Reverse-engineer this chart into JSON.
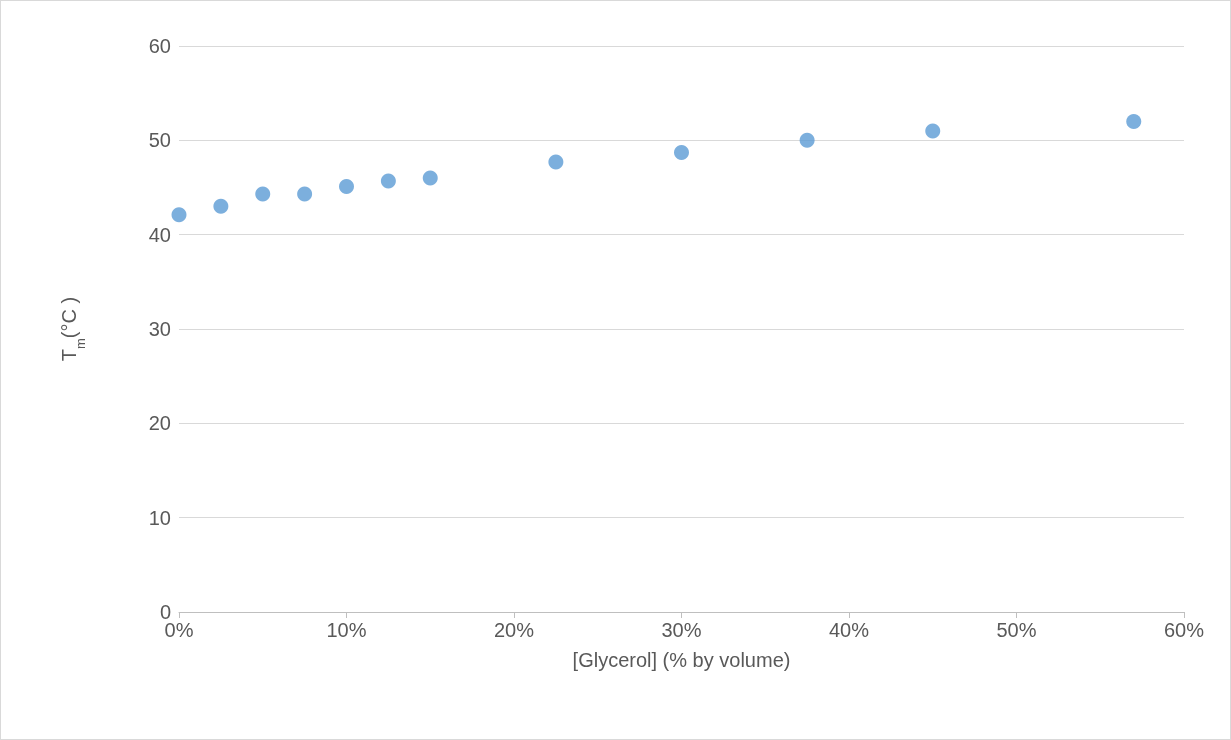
{
  "chart_data": {
    "type": "scatter",
    "xlabel": "[Glycerol] (% by volume)",
    "ylabel": "T$_{m}$(°C )",
    "x": [
      0,
      2.5,
      5,
      7.5,
      10,
      12.5,
      15,
      22.5,
      30,
      37.5,
      45,
      57
    ],
    "series": [
      {
        "color": "#5b9bd5",
        "values": [
          42.1,
          43.0,
          44.3,
          44.3,
          45.1,
          45.7,
          46.0,
          47.7,
          48.7,
          50.0,
          51.0,
          52.0
        ]
      }
    ],
    "xlim": [
      0,
      60
    ],
    "xticks": [
      {
        "value": 0,
        "label": "0%"
      },
      {
        "value": 10,
        "label": "10%"
      },
      {
        "value": 20,
        "label": "20%"
      },
      {
        "value": 30,
        "label": "30%"
      },
      {
        "value": 40,
        "label": "40%"
      },
      {
        "value": 50,
        "label": "50%"
      },
      {
        "value": 60,
        "label": "60%"
      }
    ],
    "ylim": [
      0,
      60
    ],
    "yticks": [
      0,
      10,
      20,
      30,
      40,
      50,
      60
    ],
    "grid": "y",
    "marker": "circle"
  }
}
